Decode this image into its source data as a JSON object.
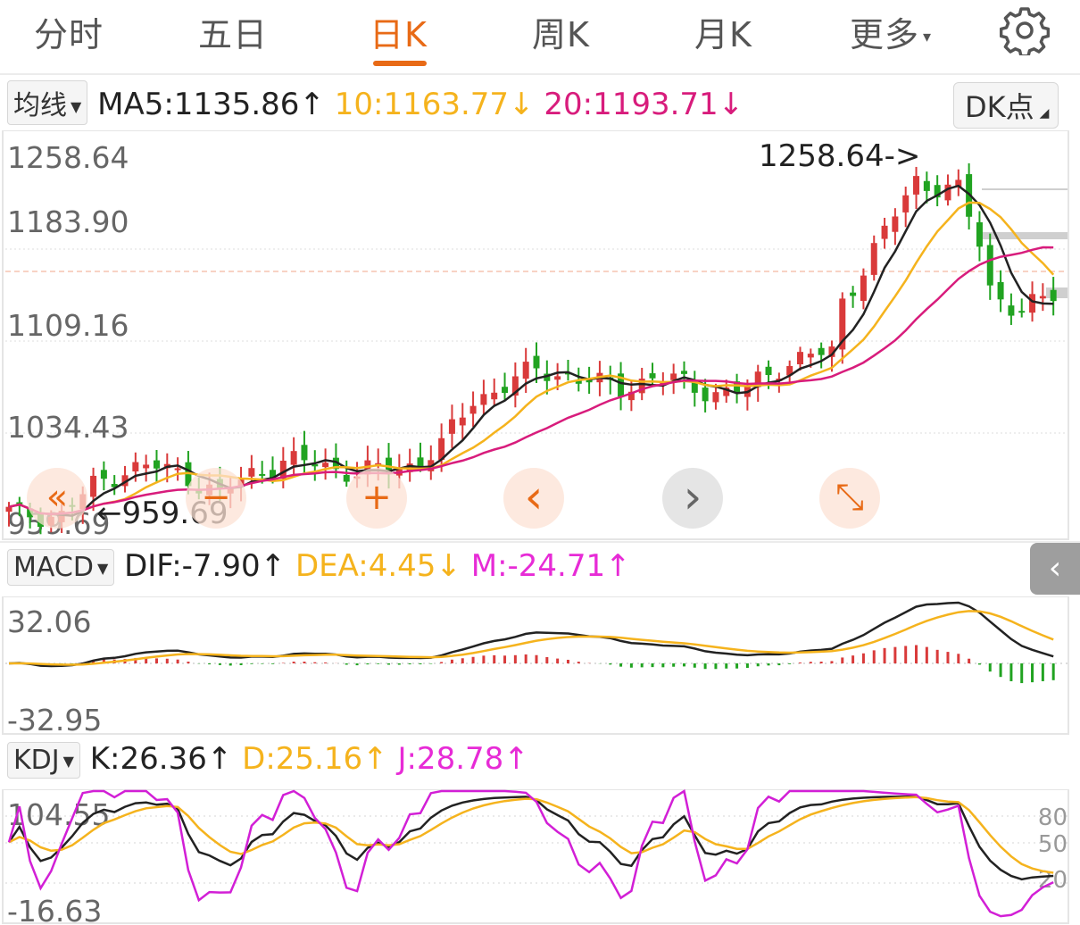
{
  "tabs": [
    {
      "label": "分时"
    },
    {
      "label": "五日"
    },
    {
      "label": "日K"
    },
    {
      "label": "周K"
    },
    {
      "label": "月K"
    },
    {
      "label": "更多"
    }
  ],
  "active_tab": 2,
  "more_arrow": "▾",
  "settings_icon": "gear-icon",
  "ma_header": {
    "selector": "均线",
    "ma5": "MA5:1135.86",
    "ma5_arrow": "↑",
    "ma10": "10:1163.77",
    "ma10_arrow": "↓",
    "ma20": "20:1193.71",
    "ma20_arrow": "↓",
    "dk_button": "DK点"
  },
  "kline": {
    "y_labels": [
      "1258.64",
      "1183.90",
      "1109.16",
      "1034.43",
      "959.69"
    ],
    "max_annotation": "1258.64->",
    "min_annotation": "959.69",
    "ylim": [
      959.69,
      1258.64
    ]
  },
  "controls": [
    {
      "name": "rewind-button",
      "glyph": "«"
    },
    {
      "name": "zoom-out-button",
      "glyph": "−"
    },
    {
      "name": "zoom-in-button",
      "glyph": "+"
    },
    {
      "name": "prev-button",
      "glyph": "‹"
    },
    {
      "name": "next-button",
      "glyph": "›"
    },
    {
      "name": "fullscreen-button",
      "glyph": "⤡"
    }
  ],
  "collapse_glyph": "‹",
  "macd_header": {
    "selector": "MACD",
    "dif": "DIF:-7.90",
    "dif_arrow": "↑",
    "dea": "DEA:4.45",
    "dea_arrow": "↓",
    "m": "M:-24.71",
    "m_arrow": "↑"
  },
  "macd": {
    "y_labels": [
      "32.06",
      "-32.95"
    ]
  },
  "kdj_header": {
    "selector": "KDJ",
    "k": "K:26.36",
    "k_arrow": "↑",
    "d": "D:25.16",
    "d_arrow": "↑",
    "j": "J:28.78",
    "j_arrow": "↑"
  },
  "kdj": {
    "y_labels": [
      "104.55",
      "-16.63"
    ],
    "right_labels": [
      "80",
      "50",
      "20"
    ]
  },
  "colors": {
    "up": "#d93a3a",
    "down": "#21a321",
    "ma5": "#222222",
    "ma10": "#f5b31d",
    "ma20": "#d81c7c",
    "accent": "#e86a16",
    "kdj_j": "#d21fd6"
  }
}
